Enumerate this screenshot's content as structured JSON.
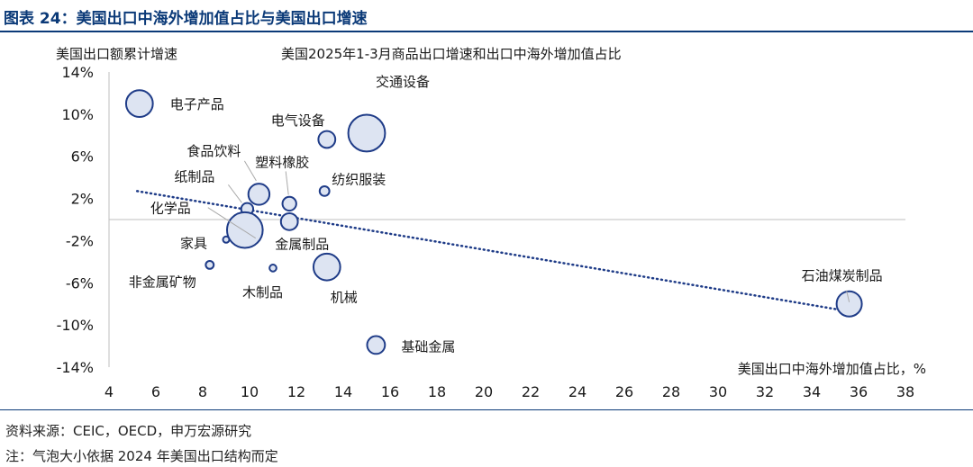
{
  "figure": {
    "title": "图表 24：美国出口中海外增加值占比与美国出口增速",
    "source": "资料来源：CEIC，OECD，申万宏源研究",
    "note": "注：气泡大小依据 2024 年美国出口结构而定"
  },
  "colors": {
    "title": "#0b3a78",
    "bubble_fill": "#dde4f2",
    "bubble_stroke": "#1f3c88",
    "trend": "#1f3c88",
    "axis": "#bfbfbf"
  },
  "chart_data": {
    "type": "scatter",
    "title": "美国2025年1-3月商品出口增速和出口中海外增加值占比",
    "xlabel": "美国出口中海外增加值占比，%",
    "ylabel": "美国出口额累计增速",
    "xlim": [
      4,
      38
    ],
    "ylim": [
      -14,
      14
    ],
    "x_ticks": [
      4,
      6,
      8,
      10,
      12,
      14,
      16,
      18,
      20,
      22,
      24,
      26,
      28,
      30,
      32,
      34,
      36,
      38
    ],
    "y_ticks": [
      14,
      10,
      6,
      2,
      -2,
      -6,
      -10,
      -14
    ],
    "y_tick_labels": [
      "14%",
      "10%",
      "6%",
      "2%",
      "-2%",
      "-6%",
      "-10%",
      "-14%"
    ],
    "points": [
      {
        "name": "电子产品",
        "x": 5.3,
        "y": 11.0,
        "size": 4.5
      },
      {
        "name": "交通设备",
        "x": 15.0,
        "y": 8.2,
        "size": 8.5
      },
      {
        "name": "电气设备",
        "x": 13.3,
        "y": 7.6,
        "size": 1.8
      },
      {
        "name": "食品饮料",
        "x": 10.4,
        "y": 2.4,
        "size": 2.8
      },
      {
        "name": "塑料橡胶",
        "x": 11.7,
        "y": 1.5,
        "size": 1.2
      },
      {
        "name": "纺织服装",
        "x": 13.2,
        "y": 2.7,
        "size": 0.6
      },
      {
        "name": "纸制品",
        "x": 9.9,
        "y": 1.0,
        "size": 0.9
      },
      {
        "name": "化学品",
        "x": 9.8,
        "y": -1.0,
        "size": 8.0
      },
      {
        "name": "金属制品",
        "x": 11.7,
        "y": -0.2,
        "size": 1.8
      },
      {
        "name": "家具",
        "x": 9.0,
        "y": -1.9,
        "size": 0.2
      },
      {
        "name": "非金属矿物",
        "x": 8.3,
        "y": -4.3,
        "size": 0.4
      },
      {
        "name": "木制品",
        "x": 11.0,
        "y": -4.6,
        "size": 0.3
      },
      {
        "name": "机械",
        "x": 13.3,
        "y": -4.5,
        "size": 4.5
      },
      {
        "name": "石油煤炭制品",
        "x": 35.6,
        "y": -8.0,
        "size": 4.0
      },
      {
        "name": "基础金属",
        "x": 15.4,
        "y": -11.9,
        "size": 2.0
      }
    ],
    "trendline": {
      "style": "dotted",
      "x": [
        5.2,
        35.3
      ],
      "y": [
        2.7,
        -8.6
      ]
    }
  }
}
